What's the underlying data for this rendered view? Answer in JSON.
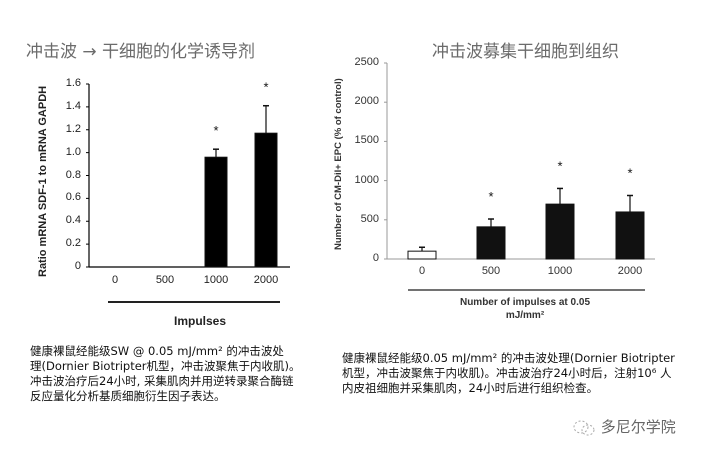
{
  "left_panel": {
    "title": "冲击波 → 干细胞的化学诱导剂",
    "caption_lines": [
      "健康裸鼠经能级SW @ 0.05 mJ/mm² 的冲击波处",
      "理(Dornier Biotripter机型，冲击波聚焦于内收肌)。",
      "冲击波治疗后24小时, 采集肌肉并用逆转录聚合酶链",
      "反应量化分析基质细胞衍生因子表达。"
    ]
  },
  "right_panel": {
    "title": "冲击波募集干细胞到组织",
    "caption_lines": [
      "健康裸鼠经能级0.05 mJ/mm² 的冲击波处理(Dornier Biotripter",
      "机型，冲击波聚焦于内收肌)。冲击波治疗24小时后，注射10⁶ 人",
      "内皮祖细胞并采集肌肉，24小时后进行组织检查。"
    ]
  },
  "watermark": {
    "icon": "wechat-icon",
    "text": "多尼尔学院"
  },
  "chart_data": [
    {
      "type": "bar",
      "title": "冲击波 → 干细胞的化学诱导剂",
      "categories": [
        "0",
        "500",
        "1000",
        "2000"
      ],
      "values": [
        0,
        0,
        0.96,
        1.17
      ],
      "error_upper": [
        0,
        0,
        1.03,
        1.41
      ],
      "significance": [
        "",
        "",
        "*",
        "*"
      ],
      "xlabel": "Impulses",
      "ylabel": "Ratio mRNA SDF-1 to mRNA GAPDH",
      "yticks": [
        "0",
        "0.2",
        "0.4",
        "0.6",
        "0.8",
        "1.0",
        "1.2",
        "1.4",
        "1.6"
      ],
      "ylim": [
        0,
        1.6
      ],
      "grid": false,
      "bar_color": "#000000"
    },
    {
      "type": "bar",
      "title": "冲击波募集干细胞到组织",
      "categories": [
        "0",
        "500",
        "1000",
        "2000"
      ],
      "values": [
        100,
        410,
        700,
        600
      ],
      "error_upper": [
        150,
        510,
        900,
        810
      ],
      "significance": [
        "",
        "*",
        "*",
        "*"
      ],
      "xlabel": "Number of impulses at 0.05 mJ/mm²",
      "ylabel": "Number of CM-DiI+ EPC (% of control)",
      "yticks": [
        "0",
        "500",
        "1000",
        "1500",
        "2000",
        "2500"
      ],
      "ylim": [
        0,
        2500
      ],
      "grid": false,
      "bar_colors": [
        "#ffffff",
        "#111111",
        "#111111",
        "#111111"
      ]
    }
  ]
}
